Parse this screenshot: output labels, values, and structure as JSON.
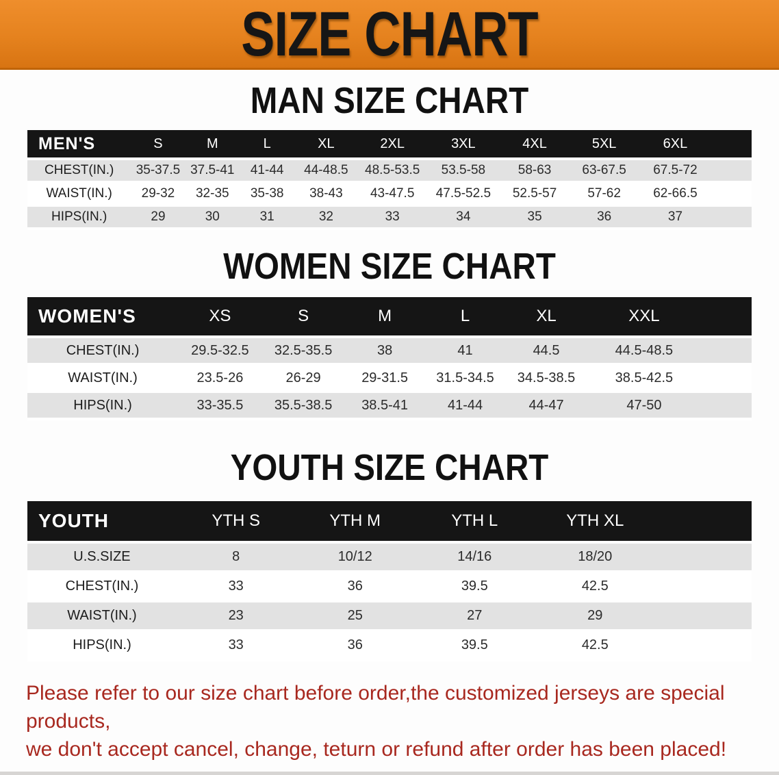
{
  "banner": {
    "title": "SIZE CHART",
    "bg_color": "#E5821E",
    "text_color": "#161616"
  },
  "sections": [
    {
      "id": "men",
      "title": "MAN SIZE CHART",
      "table": {
        "header": [
          "MEN'S",
          "S",
          "M",
          "L",
          "XL",
          "2XL",
          "3XL",
          "4XL",
          "5XL",
          "6XL"
        ],
        "rows": [
          [
            "CHEST(IN.)",
            "35-37.5",
            "37.5-41",
            "41-44",
            "44-48.5",
            "48.5-53.5",
            "53.5-58",
            "58-63",
            "63-67.5",
            "67.5-72"
          ],
          [
            "WAIST(IN.)",
            "29-32",
            "32-35",
            "35-38",
            "38-43",
            "43-47.5",
            "47.5-52.5",
            "52.5-57",
            "57-62",
            "62-66.5"
          ],
          [
            "HIPS(IN.)",
            "29",
            "30",
            "31",
            "32",
            "33",
            "34",
            "35",
            "36",
            "37"
          ]
        ]
      }
    },
    {
      "id": "women",
      "title": "WOMEN SIZE CHART",
      "table": {
        "header": [
          "WOMEN'S",
          "XS",
          "S",
          "M",
          "L",
          "XL",
          "XXL"
        ],
        "rows": [
          [
            "CHEST(IN.)",
            "29.5-32.5",
            "32.5-35.5",
            "38",
            "41",
            "44.5",
            "44.5-48.5"
          ],
          [
            "WAIST(IN.)",
            "23.5-26",
            "26-29",
            "29-31.5",
            "31.5-34.5",
            "34.5-38.5",
            "38.5-42.5"
          ],
          [
            "HIPS(IN.)",
            "33-35.5",
            "35.5-38.5",
            "38.5-41",
            "41-44",
            "44-47",
            "47-50"
          ]
        ]
      }
    },
    {
      "id": "youth",
      "title": "YOUTH SIZE CHART",
      "table": {
        "header": [
          "YOUTH",
          "YTH S",
          "YTH M",
          "YTH L",
          "YTH XL"
        ],
        "rows": [
          [
            "U.S.SIZE",
            "8",
            "10/12",
            "14/16",
            "18/20"
          ],
          [
            "CHEST(IN.)",
            "33",
            "36",
            "39.5",
            "42.5"
          ],
          [
            "WAIST(IN.)",
            "23",
            "25",
            "27",
            "29"
          ],
          [
            "HIPS(IN.)",
            "33",
            "36",
            "39.5",
            "42.5"
          ]
        ]
      }
    }
  ],
  "disclaimer": {
    "line1": "Please refer to our size chart before order,the customized jerseys are special products,",
    "line2": "we don't accept cancel, change, teturn or refund after order has been placed!",
    "color": "#A8281F"
  },
  "colors": {
    "banner_orange": "#E5821E",
    "header_black": "#151515",
    "row_gray": "#E2E2E2",
    "row_white": "#FFFFFF",
    "disclaimer_red": "#A8281F"
  }
}
